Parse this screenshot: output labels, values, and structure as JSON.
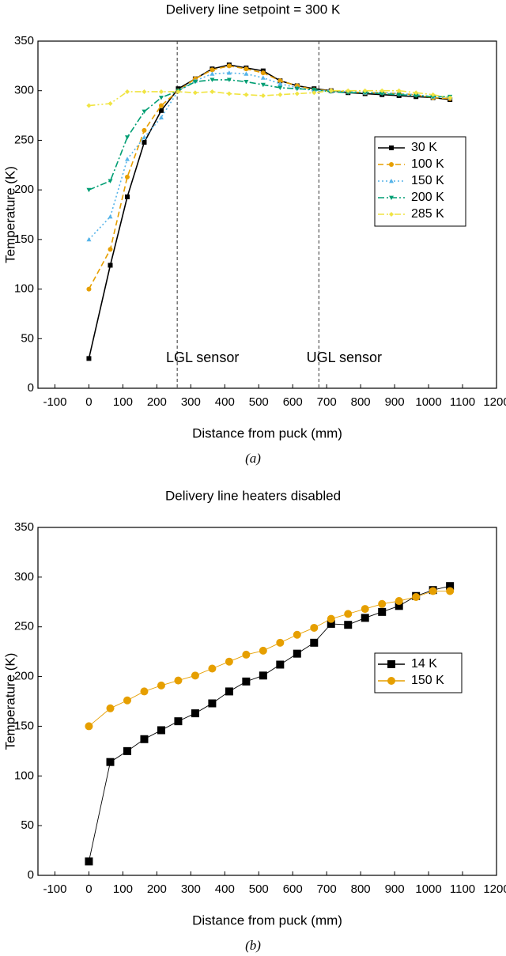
{
  "chart_data": [
    {
      "type": "line",
      "title": "Delivery line setpoint = 300 K",
      "xlabel": "Distance from puck (mm)",
      "ylabel": "Temperature (K)",
      "caption": "(a)",
      "x": [
        0,
        63,
        113,
        163,
        213,
        263,
        313,
        363,
        413,
        463,
        513,
        563,
        613,
        663,
        713,
        763,
        813,
        863,
        913,
        963,
        1013,
        1063
      ],
      "series": [
        {
          "name": "30 K",
          "color": "#000000",
          "dash": "solid",
          "marker": "square",
          "values": [
            30,
            124,
            193,
            248,
            280,
            302,
            312,
            322,
            326,
            323,
            320,
            310,
            305,
            302,
            300,
            298,
            297,
            296,
            295,
            294,
            293,
            291
          ]
        },
        {
          "name": "100 K",
          "color": "#e69f00",
          "dash": "dash",
          "marker": "circle",
          "values": [
            100,
            140,
            213,
            260,
            285,
            300,
            312,
            321,
            325,
            322,
            318,
            310,
            305,
            301,
            300,
            299,
            298,
            298,
            297,
            296,
            293,
            292
          ]
        },
        {
          "name": "150 K",
          "color": "#56b4e9",
          "dash": "dot",
          "marker": "triangle",
          "values": [
            150,
            173,
            231,
            253,
            273,
            300,
            310,
            317,
            318,
            317,
            313,
            307,
            303,
            300,
            300,
            299,
            298,
            298,
            297,
            296,
            294,
            293
          ]
        },
        {
          "name": "200 K",
          "color": "#009e73",
          "dash": "dashdot",
          "marker": "triangle-down",
          "values": [
            200,
            209,
            253,
            279,
            293,
            300,
            309,
            311,
            311,
            309,
            306,
            303,
            302,
            301,
            299,
            298,
            298,
            297,
            296,
            295,
            294,
            294
          ]
        },
        {
          "name": "285 K",
          "color": "#f0e442",
          "dash": "dashdotdot",
          "marker": "diamond",
          "values": [
            285,
            287,
            299,
            299,
            299,
            299,
            298,
            299,
            297,
            296,
            295,
            296,
            297,
            298,
            300,
            300,
            300,
            300,
            300,
            298,
            296,
            293
          ]
        }
      ],
      "annotations": [
        {
          "text": "LGL sensor",
          "x": 260
        },
        {
          "text": "UGL sensor",
          "x": 677
        }
      ],
      "xlim": [
        -150,
        1200
      ],
      "xticks": [
        -100,
        0,
        100,
        200,
        300,
        400,
        500,
        600,
        700,
        800,
        900,
        1000,
        1100,
        1200
      ],
      "ylim": [
        0,
        350
      ],
      "yticks": [
        0,
        50,
        100,
        150,
        200,
        250,
        300,
        350
      ],
      "legend": "right"
    },
    {
      "type": "line",
      "title": "Delivery line heaters disabled",
      "xlabel": "Distance from puck (mm)",
      "ylabel": "Temperature (K)",
      "caption": "(b)",
      "x": [
        0,
        63,
        113,
        163,
        213,
        263,
        313,
        363,
        413,
        463,
        513,
        563,
        613,
        663,
        713,
        763,
        813,
        863,
        913,
        963,
        1013,
        1063
      ],
      "series": [
        {
          "name": "14 K",
          "color": "#000000",
          "dash": "solid",
          "marker": "square",
          "values": [
            14,
            114,
            125,
            137,
            146,
            155,
            163,
            173,
            185,
            195,
            201,
            212,
            223,
            234,
            253,
            252,
            259,
            265,
            271,
            281,
            287,
            291
          ]
        },
        {
          "name": "150 K",
          "color": "#e69f00",
          "dash": "solid",
          "marker": "circle",
          "values": [
            150,
            168,
            176,
            185,
            191,
            196,
            201,
            208,
            215,
            222,
            226,
            234,
            242,
            249,
            258,
            263,
            268,
            273,
            276,
            280,
            286,
            286
          ]
        }
      ],
      "xlim": [
        -150,
        1200
      ],
      "xticks": [
        -100,
        0,
        100,
        200,
        300,
        400,
        500,
        600,
        700,
        800,
        900,
        1000,
        1100,
        1200
      ],
      "ylim": [
        0,
        350
      ],
      "yticks": [
        0,
        50,
        100,
        150,
        200,
        250,
        300,
        350
      ],
      "legend": "right"
    }
  ]
}
